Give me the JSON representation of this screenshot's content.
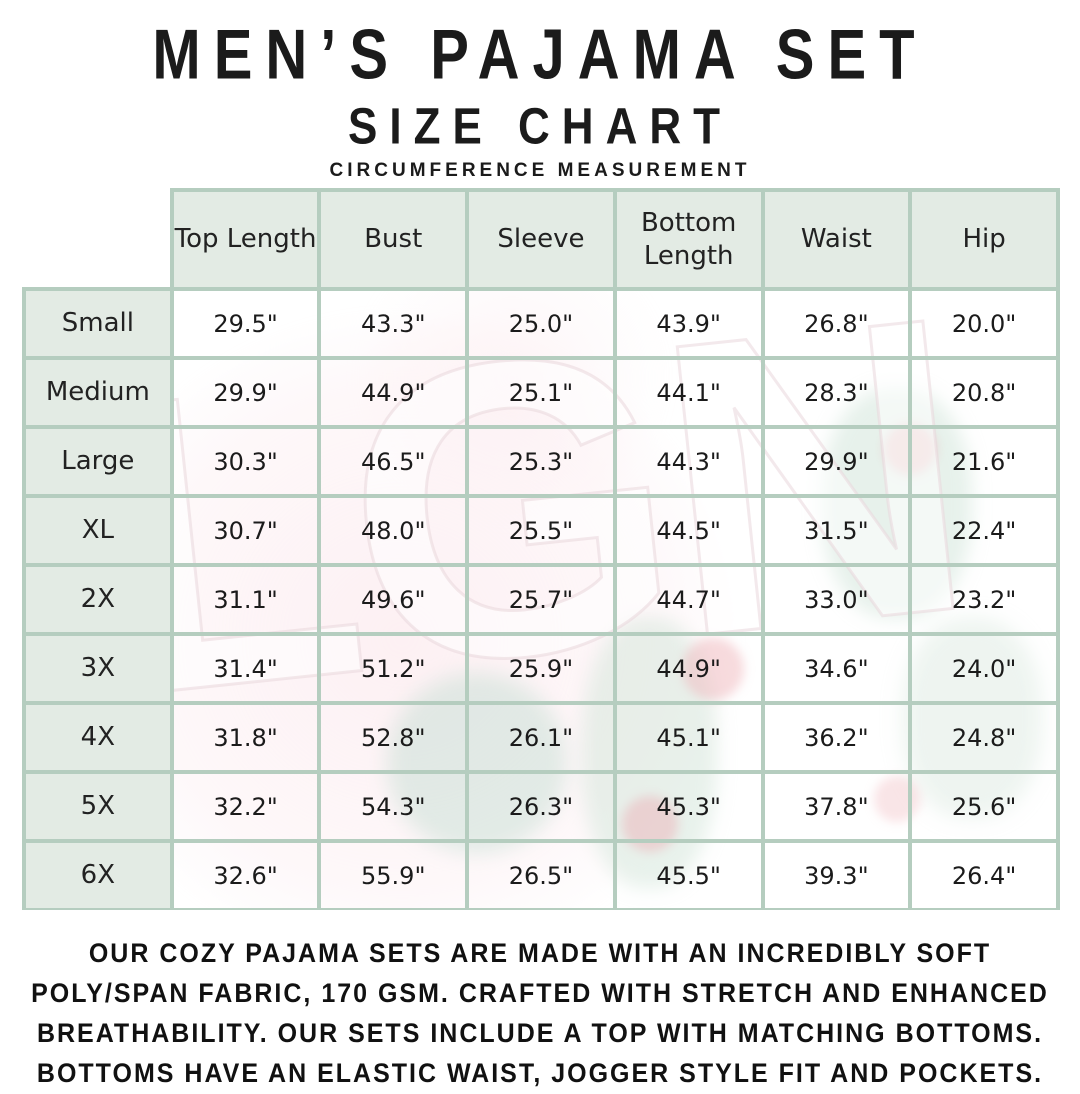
{
  "page": {
    "title": "MEN’S PAJAMA SET",
    "subtitle": "SIZE CHART",
    "measurement_label": "CIRCUMFERENCE MEASUREMENT"
  },
  "table": {
    "columns": [
      "Top Length",
      "Bust",
      "Sleeve",
      "Bottom Length",
      "Waist",
      "Hip"
    ],
    "rows": [
      {
        "size": "Small",
        "values": [
          "29.5\"",
          "43.3\"",
          "25.0\"",
          "43.9\"",
          "26.8\"",
          "20.0\""
        ]
      },
      {
        "size": "Medium",
        "values": [
          "29.9\"",
          "44.9\"",
          "25.1\"",
          "44.1\"",
          "28.3\"",
          "20.8\""
        ]
      },
      {
        "size": "Large",
        "values": [
          "30.3\"",
          "46.5\"",
          "25.3\"",
          "44.3\"",
          "29.9\"",
          "21.6\""
        ]
      },
      {
        "size": "XL",
        "values": [
          "30.7\"",
          "48.0\"",
          "25.5\"",
          "44.5\"",
          "31.5\"",
          "22.4\""
        ]
      },
      {
        "size": "2X",
        "values": [
          "31.1\"",
          "49.6\"",
          "25.7\"",
          "44.7\"",
          "33.0\"",
          "23.2\""
        ]
      },
      {
        "size": "3X",
        "values": [
          "31.4\"",
          "51.2\"",
          "25.9\"",
          "44.9\"",
          "34.6\"",
          "24.0\""
        ]
      },
      {
        "size": "4X",
        "values": [
          "31.8\"",
          "52.8\"",
          "26.1\"",
          "45.1\"",
          "36.2\"",
          "24.8\""
        ]
      },
      {
        "size": "5X",
        "values": [
          "32.2\"",
          "54.3\"",
          "26.3\"",
          "45.3\"",
          "37.8\"",
          "25.6\""
        ]
      },
      {
        "size": "6X",
        "values": [
          "32.6\"",
          "55.9\"",
          "26.5\"",
          "45.5\"",
          "39.3\"",
          "26.4\""
        ]
      }
    ]
  },
  "description": {
    "lines": [
      "OUR COZY PAJAMA SETS ARE MADE WITH AN INCREDIBLY SOFT",
      "POLY/SPAN FABRIC, 170 GSM. CRAFTED WITH STRETCH AND ENHANCED",
      "BREATHABILITY. OUR SETS INCLUDE A TOP WITH MATCHING BOTTOMS.",
      "BOTTOMS HAVE AN ELASTIC WAIST, JOGGER STYLE FIT AND POCKETS."
    ]
  },
  "watermark": {
    "text": "LGN"
  },
  "colors": {
    "header_bg": "#e3ebe4",
    "grid_border": "#b5cdbf",
    "text": "#1b1b1b",
    "watermark_pink": "#f8cdd7",
    "watermark_green": "#96c3aa"
  }
}
